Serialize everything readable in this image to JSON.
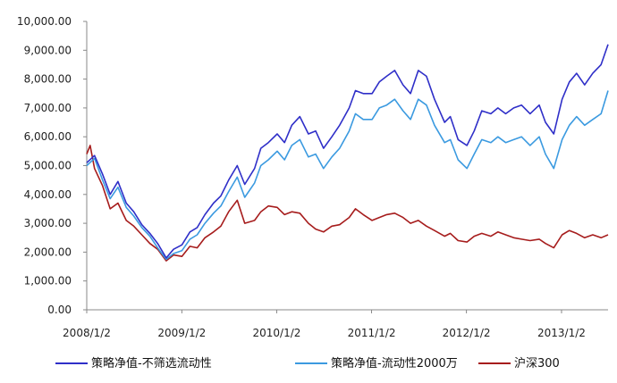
{
  "chart_data": {
    "type": "line",
    "title": "",
    "xlabel": "",
    "ylabel": "",
    "ylim": [
      0,
      10000
    ],
    "xlim": [
      "2008-01-02",
      "2013-06-30"
    ],
    "grid": false,
    "legend_position": "bottom",
    "y_ticks": [
      "0.00",
      "1,000.00",
      "2,000.00",
      "3,000.00",
      "4,000.00",
      "5,000.00",
      "6,000.00",
      "7,000.00",
      "8,000.00",
      "9,000.00",
      "10,000.00"
    ],
    "x_ticks": [
      {
        "label": "2008/1/2",
        "date": "2008-01-02"
      },
      {
        "label": "2009/1/2",
        "date": "2009-01-02"
      },
      {
        "label": "2010/1/2",
        "date": "2010-01-02"
      },
      {
        "label": "2011/1/2",
        "date": "2011-01-02"
      },
      {
        "label": "2012/1/2",
        "date": "2012-01-02"
      },
      {
        "label": "2013/1/2",
        "date": "2013-01-02"
      }
    ],
    "series": [
      {
        "name": "策略净值-不筛选流动性",
        "color": "#2f2fc8",
        "points": [
          [
            "2008-01-02",
            5100
          ],
          [
            "2008-02-01",
            5350
          ],
          [
            "2008-03-03",
            4700
          ],
          [
            "2008-04-01",
            4000
          ],
          [
            "2008-05-01",
            4450
          ],
          [
            "2008-06-02",
            3700
          ],
          [
            "2008-07-01",
            3400
          ],
          [
            "2008-08-01",
            2950
          ],
          [
            "2008-09-01",
            2650
          ],
          [
            "2008-10-01",
            2300
          ],
          [
            "2008-11-03",
            1800
          ],
          [
            "2008-12-01",
            2100
          ],
          [
            "2009-01-02",
            2250
          ],
          [
            "2009-02-02",
            2700
          ],
          [
            "2009-03-02",
            2850
          ],
          [
            "2009-04-01",
            3300
          ],
          [
            "2009-05-04",
            3700
          ],
          [
            "2009-06-01",
            3950
          ],
          [
            "2009-07-01",
            4500
          ],
          [
            "2009-08-03",
            5000
          ],
          [
            "2009-09-01",
            4350
          ],
          [
            "2009-10-09",
            4900
          ],
          [
            "2009-11-02",
            5600
          ],
          [
            "2009-12-01",
            5800
          ],
          [
            "2010-01-04",
            6100
          ],
          [
            "2010-02-01",
            5800
          ],
          [
            "2010-03-01",
            6400
          ],
          [
            "2010-04-01",
            6700
          ],
          [
            "2010-05-04",
            6100
          ],
          [
            "2010-06-01",
            6200
          ],
          [
            "2010-07-01",
            5600
          ],
          [
            "2010-08-02",
            6000
          ],
          [
            "2010-09-01",
            6400
          ],
          [
            "2010-10-08",
            7000
          ],
          [
            "2010-11-01",
            7600
          ],
          [
            "2010-12-01",
            7500
          ],
          [
            "2011-01-04",
            7500
          ],
          [
            "2011-02-01",
            7900
          ],
          [
            "2011-03-01",
            8100
          ],
          [
            "2011-04-01",
            8300
          ],
          [
            "2011-05-03",
            7800
          ],
          [
            "2011-06-01",
            7500
          ],
          [
            "2011-07-01",
            8300
          ],
          [
            "2011-08-01",
            8100
          ],
          [
            "2011-09-01",
            7300
          ],
          [
            "2011-10-10",
            6500
          ],
          [
            "2011-11-01",
            6700
          ],
          [
            "2011-12-01",
            5900
          ],
          [
            "2012-01-04",
            5700
          ],
          [
            "2012-02-01",
            6200
          ],
          [
            "2012-03-01",
            6900
          ],
          [
            "2012-04-05",
            6800
          ],
          [
            "2012-05-02",
            7000
          ],
          [
            "2012-06-01",
            6800
          ],
          [
            "2012-07-02",
            7000
          ],
          [
            "2012-08-01",
            7100
          ],
          [
            "2012-09-03",
            6800
          ],
          [
            "2012-10-08",
            7100
          ],
          [
            "2012-11-01",
            6500
          ],
          [
            "2012-12-03",
            6100
          ],
          [
            "2013-01-04",
            7300
          ],
          [
            "2013-02-01",
            7900
          ],
          [
            "2013-03-01",
            8200
          ],
          [
            "2013-04-01",
            7800
          ],
          [
            "2013-05-02",
            8200
          ],
          [
            "2013-06-03",
            8500
          ],
          [
            "2013-06-30",
            9200
          ]
        ]
      },
      {
        "name": "策略净值-流动性2000万",
        "color": "#3b9ae0",
        "points": [
          [
            "2008-01-02",
            5000
          ],
          [
            "2008-02-01",
            5250
          ],
          [
            "2008-03-03",
            4500
          ],
          [
            "2008-04-01",
            3850
          ],
          [
            "2008-05-01",
            4250
          ],
          [
            "2008-06-02",
            3550
          ],
          [
            "2008-07-01",
            3250
          ],
          [
            "2008-08-01",
            2850
          ],
          [
            "2008-09-01",
            2550
          ],
          [
            "2008-10-01",
            2150
          ],
          [
            "2008-11-03",
            1750
          ],
          [
            "2008-12-01",
            1950
          ],
          [
            "2009-01-02",
            2050
          ],
          [
            "2009-02-02",
            2450
          ],
          [
            "2009-03-02",
            2600
          ],
          [
            "2009-04-01",
            3000
          ],
          [
            "2009-05-04",
            3350
          ],
          [
            "2009-06-01",
            3600
          ],
          [
            "2009-07-01",
            4100
          ],
          [
            "2009-08-03",
            4600
          ],
          [
            "2009-09-01",
            3900
          ],
          [
            "2009-10-09",
            4400
          ],
          [
            "2009-11-02",
            5000
          ],
          [
            "2009-12-01",
            5200
          ],
          [
            "2010-01-04",
            5500
          ],
          [
            "2010-02-01",
            5200
          ],
          [
            "2010-03-01",
            5700
          ],
          [
            "2010-04-01",
            5900
          ],
          [
            "2010-05-04",
            5300
          ],
          [
            "2010-06-01",
            5400
          ],
          [
            "2010-07-01",
            4900
          ],
          [
            "2010-08-02",
            5300
          ],
          [
            "2010-09-01",
            5600
          ],
          [
            "2010-10-08",
            6200
          ],
          [
            "2010-11-01",
            6800
          ],
          [
            "2010-12-01",
            6600
          ],
          [
            "2011-01-04",
            6600
          ],
          [
            "2011-02-01",
            7000
          ],
          [
            "2011-03-01",
            7100
          ],
          [
            "2011-04-01",
            7300
          ],
          [
            "2011-05-03",
            6900
          ],
          [
            "2011-06-01",
            6600
          ],
          [
            "2011-07-01",
            7300
          ],
          [
            "2011-08-01",
            7100
          ],
          [
            "2011-09-01",
            6400
          ],
          [
            "2011-10-10",
            5800
          ],
          [
            "2011-11-01",
            5900
          ],
          [
            "2011-12-01",
            5200
          ],
          [
            "2012-01-04",
            4900
          ],
          [
            "2012-02-01",
            5400
          ],
          [
            "2012-03-01",
            5900
          ],
          [
            "2012-04-05",
            5800
          ],
          [
            "2012-05-02",
            6000
          ],
          [
            "2012-06-01",
            5800
          ],
          [
            "2012-07-02",
            5900
          ],
          [
            "2012-08-01",
            6000
          ],
          [
            "2012-09-03",
            5700
          ],
          [
            "2012-10-08",
            6000
          ],
          [
            "2012-11-01",
            5400
          ],
          [
            "2012-12-03",
            4900
          ],
          [
            "2013-01-04",
            5900
          ],
          [
            "2013-02-01",
            6400
          ],
          [
            "2013-03-01",
            6700
          ],
          [
            "2013-04-01",
            6400
          ],
          [
            "2013-05-02",
            6600
          ],
          [
            "2013-06-03",
            6800
          ],
          [
            "2013-06-30",
            7600
          ]
        ]
      },
      {
        "name": "沪深300",
        "color": "#a61c1c",
        "points": [
          [
            "2008-01-02",
            5400
          ],
          [
            "2008-01-15",
            5700
          ],
          [
            "2008-02-01",
            4900
          ],
          [
            "2008-03-03",
            4300
          ],
          [
            "2008-04-01",
            3500
          ],
          [
            "2008-05-01",
            3700
          ],
          [
            "2008-06-02",
            3100
          ],
          [
            "2008-07-01",
            2900
          ],
          [
            "2008-08-01",
            2600
          ],
          [
            "2008-09-01",
            2300
          ],
          [
            "2008-10-01",
            2100
          ],
          [
            "2008-11-03",
            1700
          ],
          [
            "2008-12-01",
            1900
          ],
          [
            "2009-01-02",
            1850
          ],
          [
            "2009-02-02",
            2200
          ],
          [
            "2009-03-02",
            2150
          ],
          [
            "2009-04-01",
            2500
          ],
          [
            "2009-05-04",
            2700
          ],
          [
            "2009-06-01",
            2900
          ],
          [
            "2009-07-01",
            3400
          ],
          [
            "2009-08-03",
            3800
          ],
          [
            "2009-09-01",
            3000
          ],
          [
            "2009-10-09",
            3100
          ],
          [
            "2009-11-02",
            3400
          ],
          [
            "2009-12-01",
            3600
          ],
          [
            "2010-01-04",
            3550
          ],
          [
            "2010-02-01",
            3300
          ],
          [
            "2010-03-01",
            3400
          ],
          [
            "2010-04-01",
            3350
          ],
          [
            "2010-05-04",
            3000
          ],
          [
            "2010-06-01",
            2800
          ],
          [
            "2010-07-01",
            2700
          ],
          [
            "2010-08-02",
            2900
          ],
          [
            "2010-09-01",
            2950
          ],
          [
            "2010-10-08",
            3200
          ],
          [
            "2010-11-01",
            3500
          ],
          [
            "2010-12-01",
            3300
          ],
          [
            "2011-01-04",
            3100
          ],
          [
            "2011-02-01",
            3200
          ],
          [
            "2011-03-01",
            3300
          ],
          [
            "2011-04-01",
            3350
          ],
          [
            "2011-05-03",
            3200
          ],
          [
            "2011-06-01",
            3000
          ],
          [
            "2011-07-01",
            3100
          ],
          [
            "2011-08-01",
            2900
          ],
          [
            "2011-09-01",
            2750
          ],
          [
            "2011-10-10",
            2550
          ],
          [
            "2011-11-01",
            2650
          ],
          [
            "2011-12-01",
            2400
          ],
          [
            "2012-01-04",
            2350
          ],
          [
            "2012-02-01",
            2550
          ],
          [
            "2012-03-01",
            2650
          ],
          [
            "2012-04-05",
            2550
          ],
          [
            "2012-05-02",
            2700
          ],
          [
            "2012-06-01",
            2600
          ],
          [
            "2012-07-02",
            2500
          ],
          [
            "2012-08-01",
            2450
          ],
          [
            "2012-09-03",
            2400
          ],
          [
            "2012-10-08",
            2450
          ],
          [
            "2012-11-01",
            2300
          ],
          [
            "2012-12-03",
            2150
          ],
          [
            "2013-01-04",
            2600
          ],
          [
            "2013-02-01",
            2750
          ],
          [
            "2013-03-01",
            2650
          ],
          [
            "2013-04-01",
            2500
          ],
          [
            "2013-05-02",
            2600
          ],
          [
            "2013-06-03",
            2500
          ],
          [
            "2013-06-30",
            2600
          ]
        ]
      }
    ]
  }
}
